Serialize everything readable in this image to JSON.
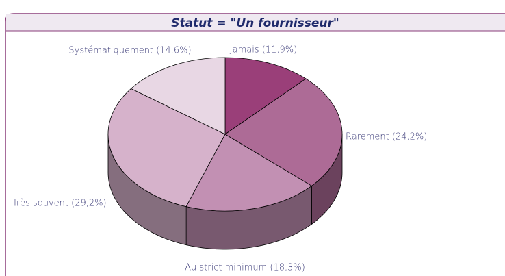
{
  "chart_data": {
    "type": "pie",
    "title": "Statut = \"Un fournisseur\"",
    "values": [
      11.9,
      24.2,
      18.3,
      29.2,
      14.6
    ],
    "value_labels": [
      "Jamais (11,9%)",
      "Rarement (24,2%)",
      "Au strict minimum (18,3%)",
      "Très souvent (29,2%)",
      "Systématiquement (14,6%)"
    ],
    "colors": [
      "#9a3f79",
      "#ad6b96",
      "#c290b3",
      "#d6b2cb",
      "#e8d7e4"
    ]
  }
}
